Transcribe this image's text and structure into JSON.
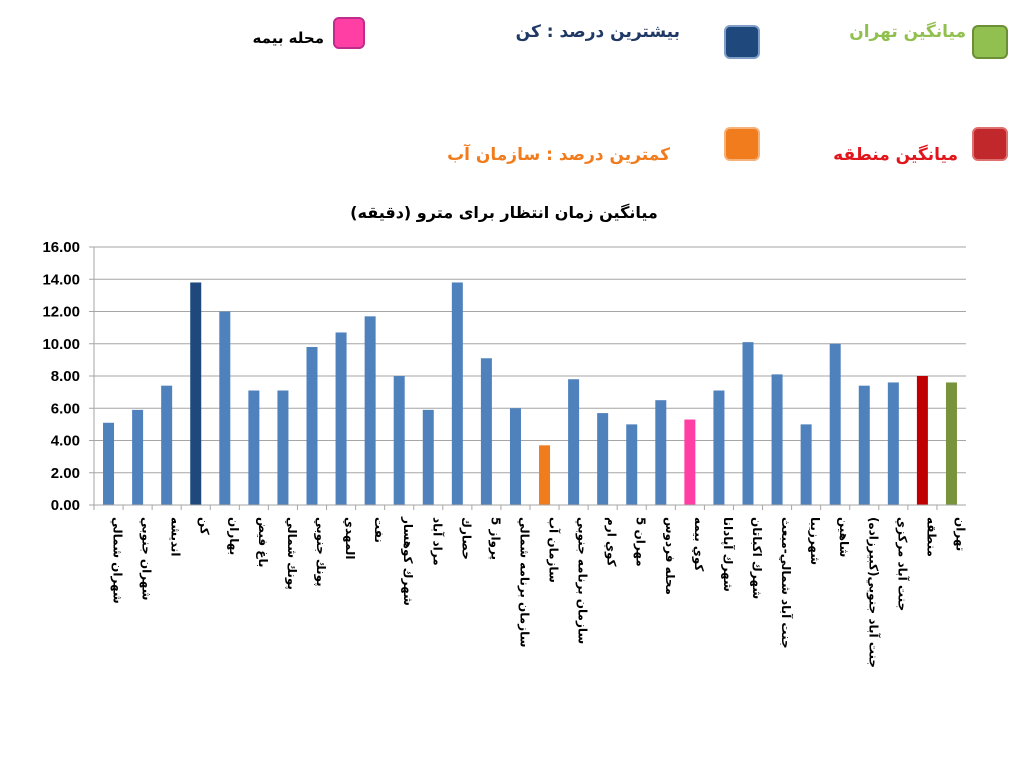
{
  "legend": {
    "bimeh": {
      "label": "محله بیمه",
      "color": "#ff3fa4"
    },
    "max": {
      "label": "بیشترین درصد   :   کن",
      "color": "#1f497d"
    },
    "tehran": {
      "label": "میانگین    تهران",
      "color": "#92c050"
    },
    "min": {
      "label": "کمترین درصد   :   سازمان آب",
      "color": "#f07c1e"
    },
    "region": {
      "label": "میانگین منطقه",
      "color": "#c0282c"
    }
  },
  "colors": {
    "default": "#4f81bd",
    "max": "#1f497d",
    "min": "#f07c1e",
    "bimeh": "#ff3fa4",
    "region": "#c00000",
    "tehran": "#77933c",
    "title": "#000000",
    "grid": "#a6a6a6"
  },
  "chart_data": {
    "type": "bar",
    "title": "میانگین زمان انتظار برای مترو (دقیقه)",
    "ylim": [
      0,
      16
    ],
    "yticks": [
      "16.00",
      "14.00",
      "12.00",
      "10.00",
      "8.00",
      "6.00",
      "4.00",
      "2.00",
      "0.00"
    ],
    "grid": true,
    "categories": [
      "شهران شمالي",
      "شهران جنوبي",
      "اندیشه",
      "كن",
      "بهاران",
      "باغ فيض",
      "پونك شمالي",
      "پونك جنوبي",
      "المهدي",
      "نفت",
      "شهرك كوهسار",
      "مراد آباد",
      "حصارك",
      "پرواز 5",
      "سازمان برنامه شمالي",
      "سازمان آب",
      "سازمان برنامه جنوبي",
      "كوي ارم",
      "مهران 5",
      "محله فردوس",
      "كوي بيمه",
      "شهرك آپادانا",
      "شهرك اكباتان",
      "جنت آباد شمالي-مبعث",
      "شهرزيبا",
      "شاهين",
      "جنت آباد جنوبي(كبيرزاده)",
      "جنت آباد مركزي",
      "منطقه",
      "تهران"
    ],
    "values": [
      5.1,
      5.9,
      7.4,
      13.8,
      12.0,
      7.1,
      7.1,
      9.8,
      10.7,
      11.7,
      8.0,
      5.9,
      13.8,
      9.1,
      6.0,
      3.7,
      7.8,
      5.7,
      5.0,
      6.5,
      5.3,
      7.1,
      10.1,
      8.1,
      5.0,
      10.0,
      7.4,
      7.6,
      8.0,
      7.6
    ],
    "highlight": {
      "3": "max",
      "15": "min",
      "20": "bimeh",
      "28": "region",
      "29": "tehran"
    }
  }
}
